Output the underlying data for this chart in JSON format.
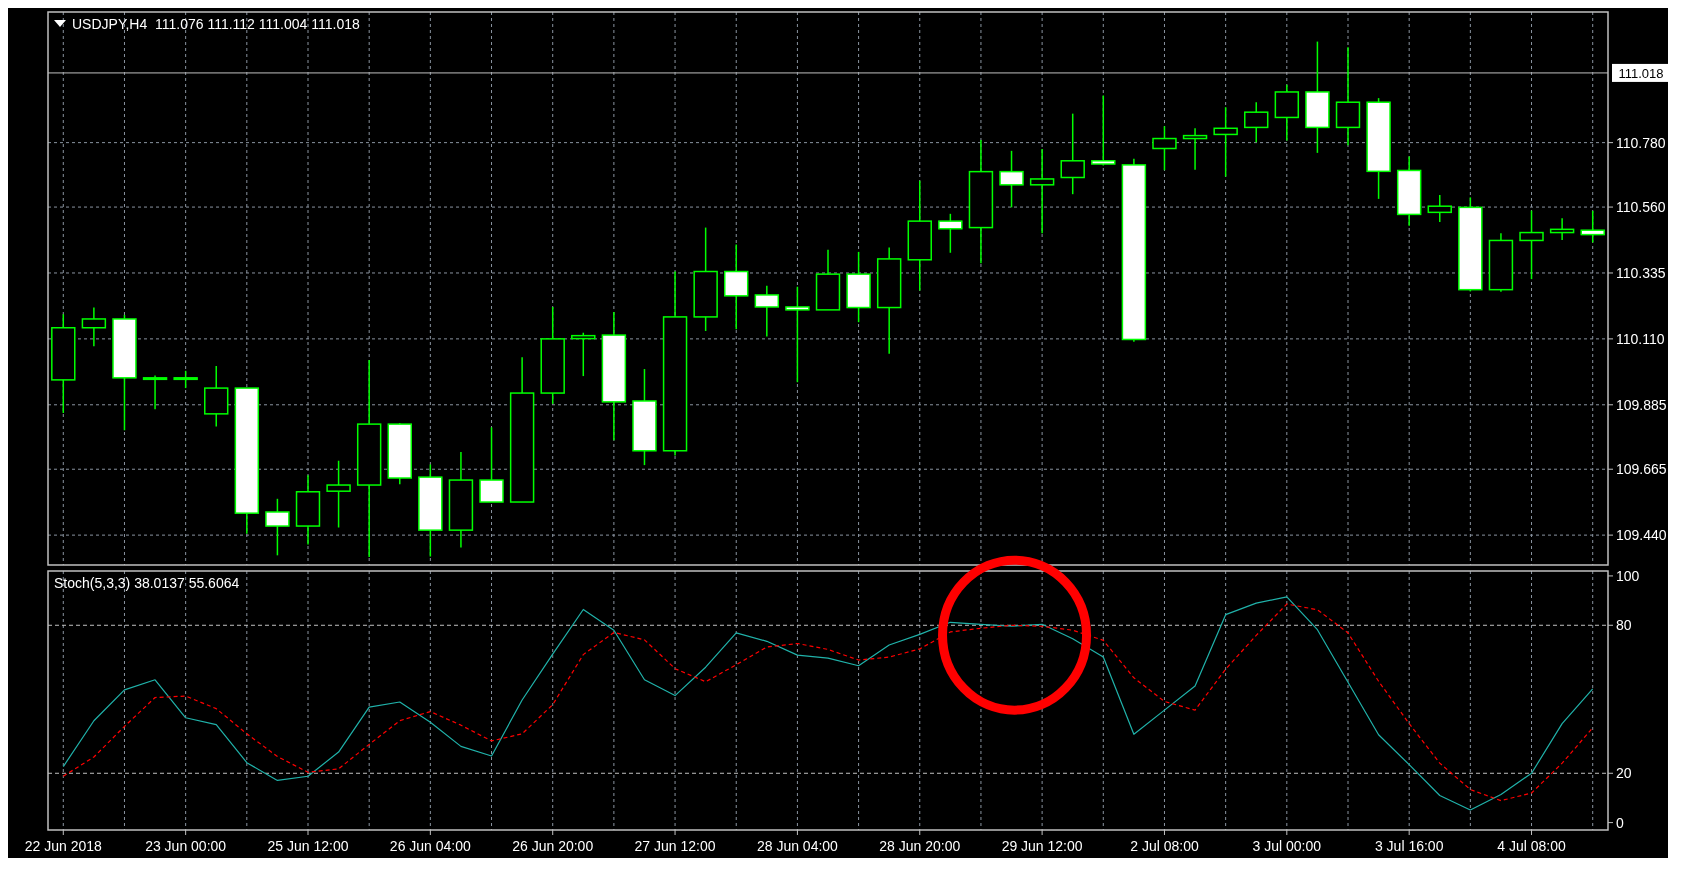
{
  "chart_data": [
    {
      "type": "candlestick",
      "title": "USDJPY,H4  111.076 111.112 111.004 111.018",
      "color": "#00ff00",
      "grid": true,
      "tick_labels": "y",
      "ylim": [
        109.338,
        111.226
      ],
      "yticks": [
        {
          "value": 109.44,
          "label": "109.440"
        },
        109.665,
        109.885,
        {
          "value": 110.11,
          "label": "110.110"
        },
        110.335,
        {
          "value": 110.56,
          "label": "110.560"
        },
        {
          "value": 110.78,
          "label": "110.780"
        }
      ],
      "ref_lines": [
        {
          "axis": "y",
          "value": 111.018,
          "label": "111.018",
          "color": "#c0c0c0",
          "line_style": "solid"
        }
      ],
      "ohlc": [
        [
          109.97,
          110.194,
          109.857,
          110.148
        ],
        [
          110.148,
          110.217,
          110.085,
          110.178
        ],
        [
          110.178,
          110.192,
          109.798,
          109.977
        ],
        [
          109.977,
          109.985,
          109.87,
          109.977
        ],
        [
          109.977,
          110.001,
          109.942,
          109.974
        ],
        [
          109.854,
          110.017,
          109.811,
          109.942
        ],
        [
          109.942,
          109.942,
          109.445,
          109.515
        ],
        [
          109.519,
          109.564,
          109.371,
          109.471
        ],
        [
          109.471,
          109.644,
          109.408,
          109.588
        ],
        [
          109.59,
          109.694,
          109.466,
          109.611
        ],
        [
          109.611,
          110.038,
          109.365,
          109.819
        ],
        [
          109.819,
          109.823,
          109.614,
          109.635
        ],
        [
          109.638,
          109.681,
          109.367,
          109.457
        ],
        [
          109.457,
          109.724,
          109.398,
          109.628
        ],
        [
          109.628,
          109.808,
          109.553,
          109.553
        ],
        [
          109.553,
          110.047,
          109.553,
          109.925
        ],
        [
          109.925,
          110.219,
          109.888,
          110.11
        ],
        [
          110.111,
          110.131,
          109.983,
          110.121
        ],
        [
          110.123,
          110.202,
          109.764,
          109.895
        ],
        [
          109.898,
          110.007,
          109.679,
          109.728
        ],
        [
          109.728,
          110.34,
          109.712,
          110.185
        ],
        [
          110.185,
          110.49,
          110.137,
          110.34
        ],
        [
          110.34,
          110.432,
          110.143,
          110.257
        ],
        [
          110.26,
          110.291,
          110.118,
          110.219
        ],
        [
          110.219,
          110.288,
          109.962,
          110.209
        ],
        [
          110.209,
          110.414,
          110.209,
          110.331
        ],
        [
          110.331,
          110.407,
          110.167,
          110.217
        ],
        [
          110.217,
          110.422,
          110.059,
          110.383
        ],
        [
          110.38,
          110.65,
          110.275,
          110.512
        ],
        [
          110.512,
          110.537,
          110.404,
          110.486
        ],
        [
          110.49,
          110.789,
          110.368,
          110.681
        ],
        [
          110.681,
          110.752,
          110.559,
          110.636
        ],
        [
          110.636,
          110.758,
          110.471,
          110.656
        ],
        [
          110.661,
          110.879,
          110.604,
          110.718
        ],
        [
          110.718,
          110.941,
          110.702,
          110.707
        ],
        [
          110.704,
          110.725,
          110.1,
          110.108
        ],
        [
          110.76,
          110.836,
          110.686,
          110.794
        ],
        [
          110.794,
          110.829,
          110.687,
          110.804
        ],
        [
          110.808,
          110.901,
          110.664,
          110.829
        ],
        [
          110.832,
          110.918,
          110.781,
          110.884
        ],
        [
          110.866,
          110.978,
          110.787,
          110.953
        ],
        [
          110.953,
          111.125,
          110.745,
          110.832
        ],
        [
          110.832,
          111.106,
          110.771,
          110.918
        ],
        [
          110.918,
          110.932,
          110.588,
          110.682
        ],
        [
          110.685,
          110.733,
          110.496,
          110.535
        ],
        [
          110.542,
          110.601,
          110.509,
          110.563
        ],
        [
          110.559,
          110.593,
          110.272,
          110.278
        ],
        [
          110.278,
          110.471,
          110.271,
          110.446
        ],
        [
          110.446,
          110.548,
          110.314,
          110.473
        ],
        [
          110.473,
          110.522,
          110.448,
          110.484
        ],
        [
          110.481,
          110.547,
          110.439,
          110.466
        ]
      ]
    },
    {
      "type": "line",
      "title": "Stoch(5,3,3) 38.0137 55.6064",
      "grid": "x",
      "categories": [
        "22 Jun 2018",
        null,
        null,
        null,
        "23 Jun 00:00",
        null,
        null,
        null,
        "25 Jun 12:00",
        null,
        null,
        null,
        "26 Jun 04:00",
        null,
        null,
        null,
        "26 Jun 20:00",
        null,
        null,
        null,
        "27 Jun 12:00",
        null,
        null,
        null,
        "28 Jun 04:00",
        null,
        null,
        null,
        "28 Jun 20:00",
        null,
        null,
        null,
        "29 Jun 12:00",
        null,
        null,
        null,
        "2 Jul 08:00",
        null,
        null,
        null,
        "3 Jul 00:00",
        null,
        null,
        null,
        "3 Jul 16:00",
        null,
        null,
        null,
        "4 Jul 08:00",
        null,
        null
      ],
      "ylim": [
        -3,
        102
      ],
      "yticks": [
        0,
        20,
        80,
        100
      ],
      "ref_lines": [
        {
          "axis": "y",
          "value": 20,
          "color": "#c0c0c0",
          "line_style": "dashed"
        },
        {
          "axis": "y",
          "value": 80,
          "color": "#c0c0c0",
          "line_style": "dashed"
        }
      ],
      "series": [
        {
          "color": "#20b2aa",
          "line_style": "solid",
          "values": [
            22.7,
            41.3,
            53.8,
            57.9,
            42.5,
            39.7,
            24.3,
            17.1,
            18.8,
            28.6,
            46.8,
            48.9,
            40.7,
            30.9,
            27.0,
            49.7,
            68.3,
            86.4,
            78.0,
            57.9,
            51.5,
            63.0,
            76.9,
            73.5,
            67.9,
            66.7,
            63.6,
            72.0,
            76.3,
            81.2,
            80.4,
            79.6,
            80.4,
            74.5,
            67.1,
            35.8,
            45.6,
            55.4,
            84.3,
            89.0,
            91.5,
            78.2,
            56.9,
            35.6,
            23.5,
            11.0,
            5.1,
            11.4,
            20.0,
            40.1,
            54.2
          ]
        },
        {
          "color": "#ff0000",
          "line_style": "dashed",
          "values": [
            18.8,
            26.6,
            39.0,
            50.7,
            51.3,
            46.2,
            36.0,
            26.8,
            20.4,
            21.8,
            31.7,
            41.3,
            45.0,
            39.5,
            33.1,
            36.0,
            47.8,
            68.1,
            77.1,
            74.1,
            62.4,
            57.1,
            64.0,
            71.2,
            72.6,
            70.2,
            65.9,
            67.1,
            70.4,
            77.3,
            78.8,
            80.0,
            79.6,
            78.0,
            73.9,
            58.7,
            49.1,
            45.6,
            62.2,
            75.9,
            88.6,
            86.3,
            76.9,
            57.3,
            40.1,
            24.1,
            13.4,
            8.9,
            12.0,
            24.1,
            38.4
          ]
        }
      ]
    }
  ]
}
